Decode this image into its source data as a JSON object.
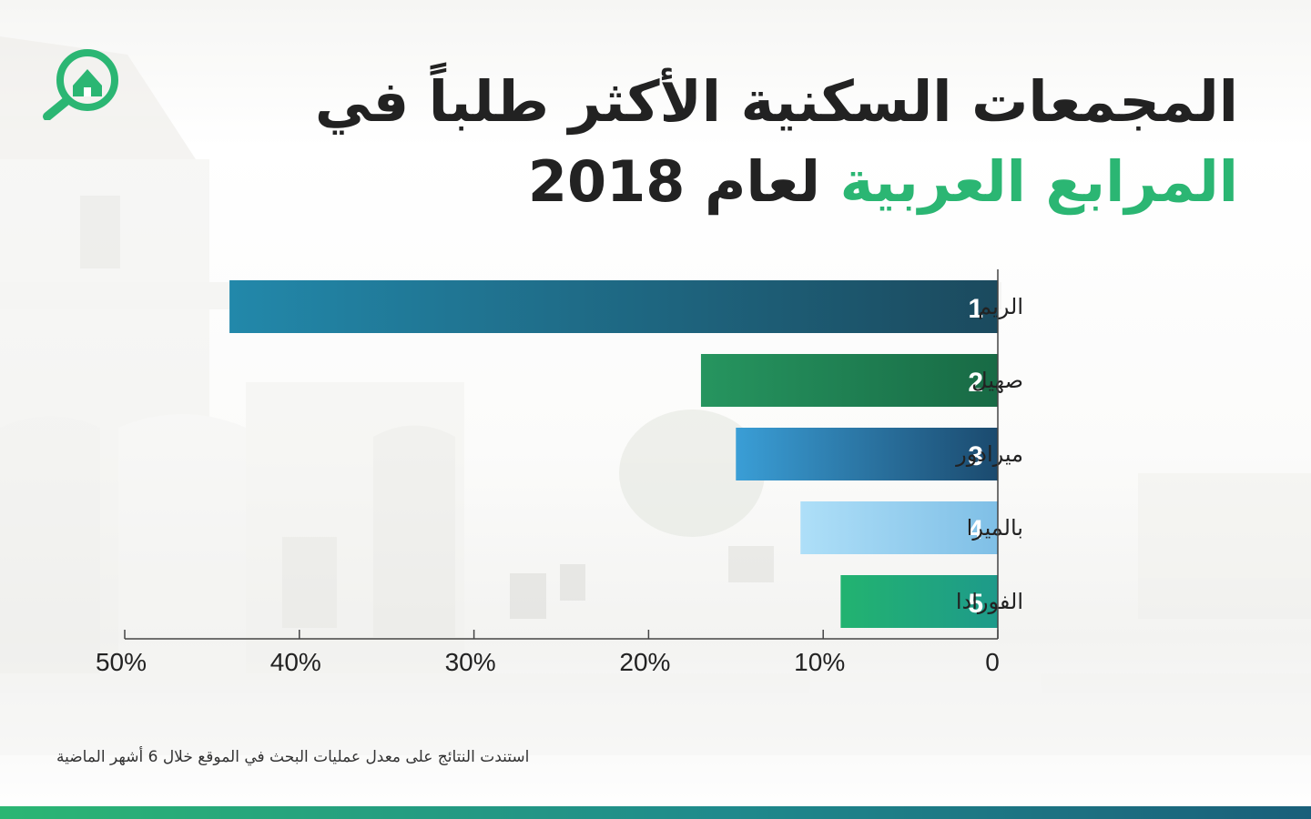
{
  "title": {
    "line1": "المجمعات السكنية الأكثر طلباً في",
    "line2_green": "المرابع العربية",
    "line2_rest": "لعام 2018"
  },
  "footnote": "استندت النتائج على معدل عمليات البحث في الموقع خلال 6 أشهر الماضية",
  "colors": {
    "title": "#222222",
    "accent_green": "#2bb673",
    "axis": "#444444"
  },
  "logo": {
    "icon": "home-search-icon"
  },
  "chart_data": {
    "type": "bar",
    "orientation": "horizontal",
    "direction": "rtl",
    "categories": [
      "الريم",
      "صهيل",
      "ميرادور",
      "بالميرا",
      "الفورادا"
    ],
    "ranks": [
      "1",
      "2",
      "3",
      "4",
      "5"
    ],
    "values": [
      44,
      17,
      15,
      11.3,
      9
    ],
    "xlim": [
      0,
      50
    ],
    "ticks": [
      0,
      10,
      20,
      30,
      40,
      50
    ],
    "tick_labels": [
      "0",
      "10%",
      "20%",
      "30%",
      "40%",
      "50%"
    ],
    "grid": false,
    "bar_colors": [
      [
        "#1b4a5e",
        "#2288aa"
      ],
      [
        "#186a45",
        "#26955f"
      ],
      [
        "#1b4a6e",
        "#3a9ed6"
      ],
      [
        "#7fbfe6",
        "#aedff8"
      ],
      [
        "#1e9a8a",
        "#22b370"
      ]
    ]
  }
}
